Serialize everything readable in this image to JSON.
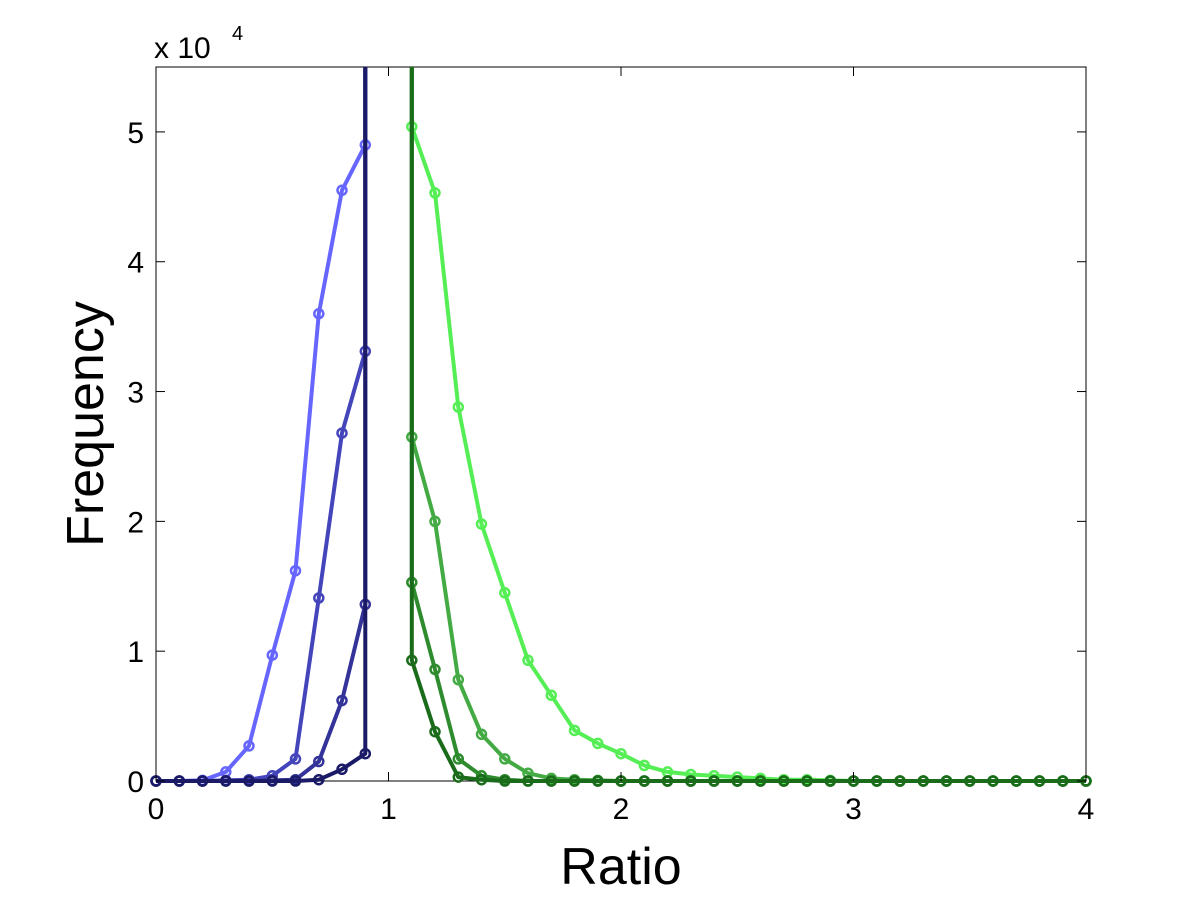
{
  "chart_data": {
    "type": "line",
    "xlabel": "Ratio",
    "ylabel": "Frequency",
    "y_multiplier_label": "x 10",
    "y_multiplier_exponent": "4",
    "xlim": [
      0,
      4
    ],
    "ylim": [
      0,
      55000
    ],
    "x_ticks": [
      "0",
      "1",
      "2",
      "3",
      "4"
    ],
    "y_ticks": [
      "0",
      "1",
      "2",
      "3",
      "4",
      "5"
    ],
    "grid": false,
    "series": [
      {
        "color": "#6666ff",
        "x": [
          0,
          0.1,
          0.2,
          0.3,
          0.4,
          0.5,
          0.6,
          0.7,
          0.8,
          0.9,
          0.9
        ],
        "y": [
          0,
          0,
          50,
          700,
          2700,
          9700,
          16200,
          36000,
          45500,
          49000,
          55000
        ]
      },
      {
        "color": "#4444bb",
        "x": [
          0,
          0.1,
          0.2,
          0.3,
          0.4,
          0.5,
          0.6,
          0.7,
          0.8,
          0.9,
          0.9
        ],
        "y": [
          0,
          0,
          0,
          50,
          100,
          400,
          1700,
          14100,
          26800,
          33100,
          55000
        ]
      },
      {
        "color": "#333399",
        "x": [
          0,
          0.1,
          0.2,
          0.3,
          0.4,
          0.5,
          0.6,
          0.7,
          0.8,
          0.9,
          0.9
        ],
        "y": [
          0,
          0,
          0,
          0,
          0,
          50,
          100,
          1500,
          6200,
          13600,
          55000
        ]
      },
      {
        "color": "#1a1a66",
        "x": [
          0,
          0.1,
          0.2,
          0.3,
          0.4,
          0.5,
          0.6,
          0.7,
          0.8,
          0.9,
          0.9
        ],
        "y": [
          0,
          0,
          0,
          0,
          0,
          0,
          0,
          100,
          900,
          2100,
          55000
        ]
      },
      {
        "color": "#55ee55",
        "x": [
          1.1,
          1.1,
          1.2,
          1.3,
          1.4,
          1.5,
          1.6,
          1.7,
          1.8,
          1.9,
          2.0,
          2.1,
          2.2,
          2.3,
          2.4,
          2.5,
          2.6,
          2.7,
          2.8,
          2.9,
          3.0,
          3.1,
          3.2,
          3.3,
          3.4,
          3.5,
          3.6,
          3.7,
          3.8,
          3.9,
          4.0
        ],
        "y": [
          55000,
          50400,
          45300,
          28800,
          19800,
          14500,
          9300,
          6600,
          3900,
          2900,
          2100,
          1200,
          700,
          500,
          400,
          300,
          200,
          100,
          100,
          50,
          0,
          0,
          0,
          0,
          0,
          0,
          0,
          0,
          0,
          0,
          0
        ]
      },
      {
        "color": "#44aa44",
        "x": [
          1.1,
          1.1,
          1.2,
          1.3,
          1.4,
          1.5,
          1.6,
          1.7,
          1.8,
          1.9,
          2.0,
          2.1,
          2.2,
          2.3,
          2.4,
          2.5,
          2.6,
          2.7,
          2.8,
          2.9,
          3.0,
          3.1,
          3.2,
          3.3,
          3.4,
          3.5,
          3.6,
          3.7,
          3.8,
          3.9,
          4.0
        ],
        "y": [
          55000,
          26500,
          20000,
          7800,
          3600,
          1700,
          600,
          200,
          100,
          50,
          0,
          0,
          0,
          0,
          0,
          0,
          0,
          0,
          0,
          0,
          0,
          0,
          0,
          0,
          0,
          0,
          0,
          0,
          0,
          0,
          0
        ]
      },
      {
        "color": "#2e8b2e",
        "x": [
          1.1,
          1.1,
          1.2,
          1.3,
          1.4,
          1.5,
          1.6,
          1.7,
          1.8,
          1.9,
          2.0,
          2.1,
          2.2,
          2.3,
          2.4,
          2.5,
          2.6,
          2.7,
          2.8,
          2.9,
          3.0,
          3.1,
          3.2,
          3.3,
          3.4,
          3.5,
          3.6,
          3.7,
          3.8,
          3.9,
          4.0
        ],
        "y": [
          55000,
          15300,
          8600,
          1700,
          400,
          100,
          0,
          0,
          0,
          0,
          0,
          0,
          0,
          0,
          0,
          0,
          0,
          0,
          0,
          0,
          0,
          0,
          0,
          0,
          0,
          0,
          0,
          0,
          0,
          0,
          0
        ]
      },
      {
        "color": "#1a6b1a",
        "x": [
          1.1,
          1.1,
          1.2,
          1.3,
          1.4,
          1.5,
          1.6,
          1.7,
          1.8,
          1.9,
          2.0,
          2.1,
          2.2,
          2.3,
          2.4,
          2.5,
          2.6,
          2.7,
          2.8,
          2.9,
          3.0,
          3.1,
          3.2,
          3.3,
          3.4,
          3.5,
          3.6,
          3.7,
          3.8,
          3.9,
          4.0
        ],
        "y": [
          55000,
          9300,
          3800,
          300,
          100,
          0,
          0,
          0,
          0,
          0,
          0,
          0,
          0,
          0,
          0,
          0,
          0,
          0,
          0,
          0,
          0,
          0,
          0,
          0,
          0,
          0,
          0,
          0,
          0,
          0,
          0
        ]
      }
    ]
  }
}
